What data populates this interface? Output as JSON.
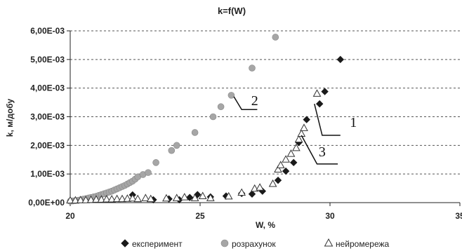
{
  "chart_data": {
    "type": "scatter",
    "title": "k=f(W)",
    "xlabel": "W, %",
    "ylabel": "k, м/добу",
    "xlim": [
      20,
      35
    ],
    "ylim": [
      0,
      0.006
    ],
    "x_ticks": [
      "20",
      "25",
      "30",
      "35"
    ],
    "y_ticks": [
      "0,00E+00",
      "1,00E-03",
      "2,00E-03",
      "3,00E-03",
      "4,00E-03",
      "5,00E-03",
      "6,00E-03"
    ],
    "grid": "horizontal dashed",
    "legend_position": "bottom",
    "series": [
      {
        "name": "експеримент",
        "marker": "diamond",
        "color": "#1a1a1a",
        "x": [
          22.4,
          23.2,
          23.8,
          24.2,
          24.6,
          24.9,
          25.4,
          26.0,
          26.6,
          27.0,
          27.4,
          28.0,
          28.3,
          28.6,
          28.8,
          29.1,
          29.6,
          29.8,
          30.4
        ],
        "y": [
          0.00027,
          0.0001,
          0.00013,
          0.0001,
          0.00018,
          0.00028,
          0.0002,
          0.00023,
          0.00032,
          0.0003,
          0.0004,
          0.00078,
          0.0011,
          0.0014,
          0.0021,
          0.0029,
          0.00345,
          0.00388,
          0.005
        ]
      },
      {
        "name": "розрахунок",
        "marker": "circle",
        "color": "#a6a6a6",
        "x": [
          20.0,
          20.1,
          20.2,
          20.3,
          20.4,
          20.5,
          20.6,
          20.7,
          20.8,
          20.9,
          21.0,
          21.1,
          21.2,
          21.3,
          21.4,
          21.5,
          21.6,
          21.7,
          21.8,
          21.9,
          22.0,
          22.1,
          22.2,
          22.3,
          22.4,
          22.5,
          22.6,
          22.8,
          23.0,
          23.3,
          23.9,
          24.1,
          24.8,
          25.5,
          25.8,
          26.2,
          27.0,
          27.9
        ],
        "y": [
          5e-05,
          6e-05,
          7e-05,
          8e-05,
          0.0001,
          0.00012,
          0.00014,
          0.00016,
          0.00018,
          0.0002,
          0.00022,
          0.00025,
          0.00028,
          0.00031,
          0.00034,
          0.00037,
          0.0004,
          0.00044,
          0.00048,
          0.00052,
          0.00056,
          0.0006,
          0.00065,
          0.0007,
          0.00075,
          0.00082,
          0.0009,
          0.00098,
          0.00105,
          0.0014,
          0.00182,
          0.002,
          0.00245,
          0.003,
          0.00335,
          0.00375,
          0.0047,
          0.00578
        ]
      },
      {
        "name": "нейромережа",
        "marker": "triangle",
        "color": "#ffffff",
        "x": [
          20.0,
          20.2,
          20.4,
          20.6,
          20.8,
          21.0,
          21.2,
          21.4,
          21.6,
          21.8,
          22.0,
          22.2,
          22.4,
          22.6,
          22.9,
          23.1,
          23.7,
          24.1,
          24.4,
          24.8,
          25.1,
          25.4,
          26.1,
          26.6,
          27.1,
          27.3,
          27.8,
          28.0,
          28.1,
          28.3,
          28.5,
          28.7,
          28.8,
          28.9,
          29.0,
          29.5
        ],
        "y": [
          7e-05,
          7e-05,
          8e-05,
          8e-05,
          9e-05,
          0.0001,
          0.0001,
          0.00011,
          0.00011,
          0.00012,
          0.00012,
          0.00013,
          0.00014,
          0.00012,
          0.00015,
          0.00012,
          0.00014,
          0.00015,
          0.00018,
          0.00015,
          0.00022,
          0.00015,
          0.00021,
          0.00034,
          0.00048,
          0.00052,
          0.00065,
          0.00115,
          0.0013,
          0.0015,
          0.0017,
          0.0019,
          0.0022,
          0.0024,
          0.0026,
          0.0038
        ]
      }
    ],
    "annotations": [
      {
        "text": "1",
        "x": 30.9,
        "y": 0.00265,
        "line": [
          [
            29.4,
            0.00345
          ],
          [
            29.7,
            0.00235
          ],
          [
            30.4,
            0.00235
          ]
        ]
      },
      {
        "text": "2",
        "x": 27.1,
        "y": 0.0034,
        "line": [
          [
            26.3,
            0.0037
          ],
          [
            26.6,
            0.00325
          ],
          [
            27.2,
            0.00325
          ]
        ]
      },
      {
        "text": "3",
        "x": 29.7,
        "y": 0.00162,
        "line": [
          [
            28.9,
            0.00235
          ],
          [
            29.5,
            0.00135
          ],
          [
            30.3,
            0.00135
          ]
        ]
      }
    ]
  }
}
